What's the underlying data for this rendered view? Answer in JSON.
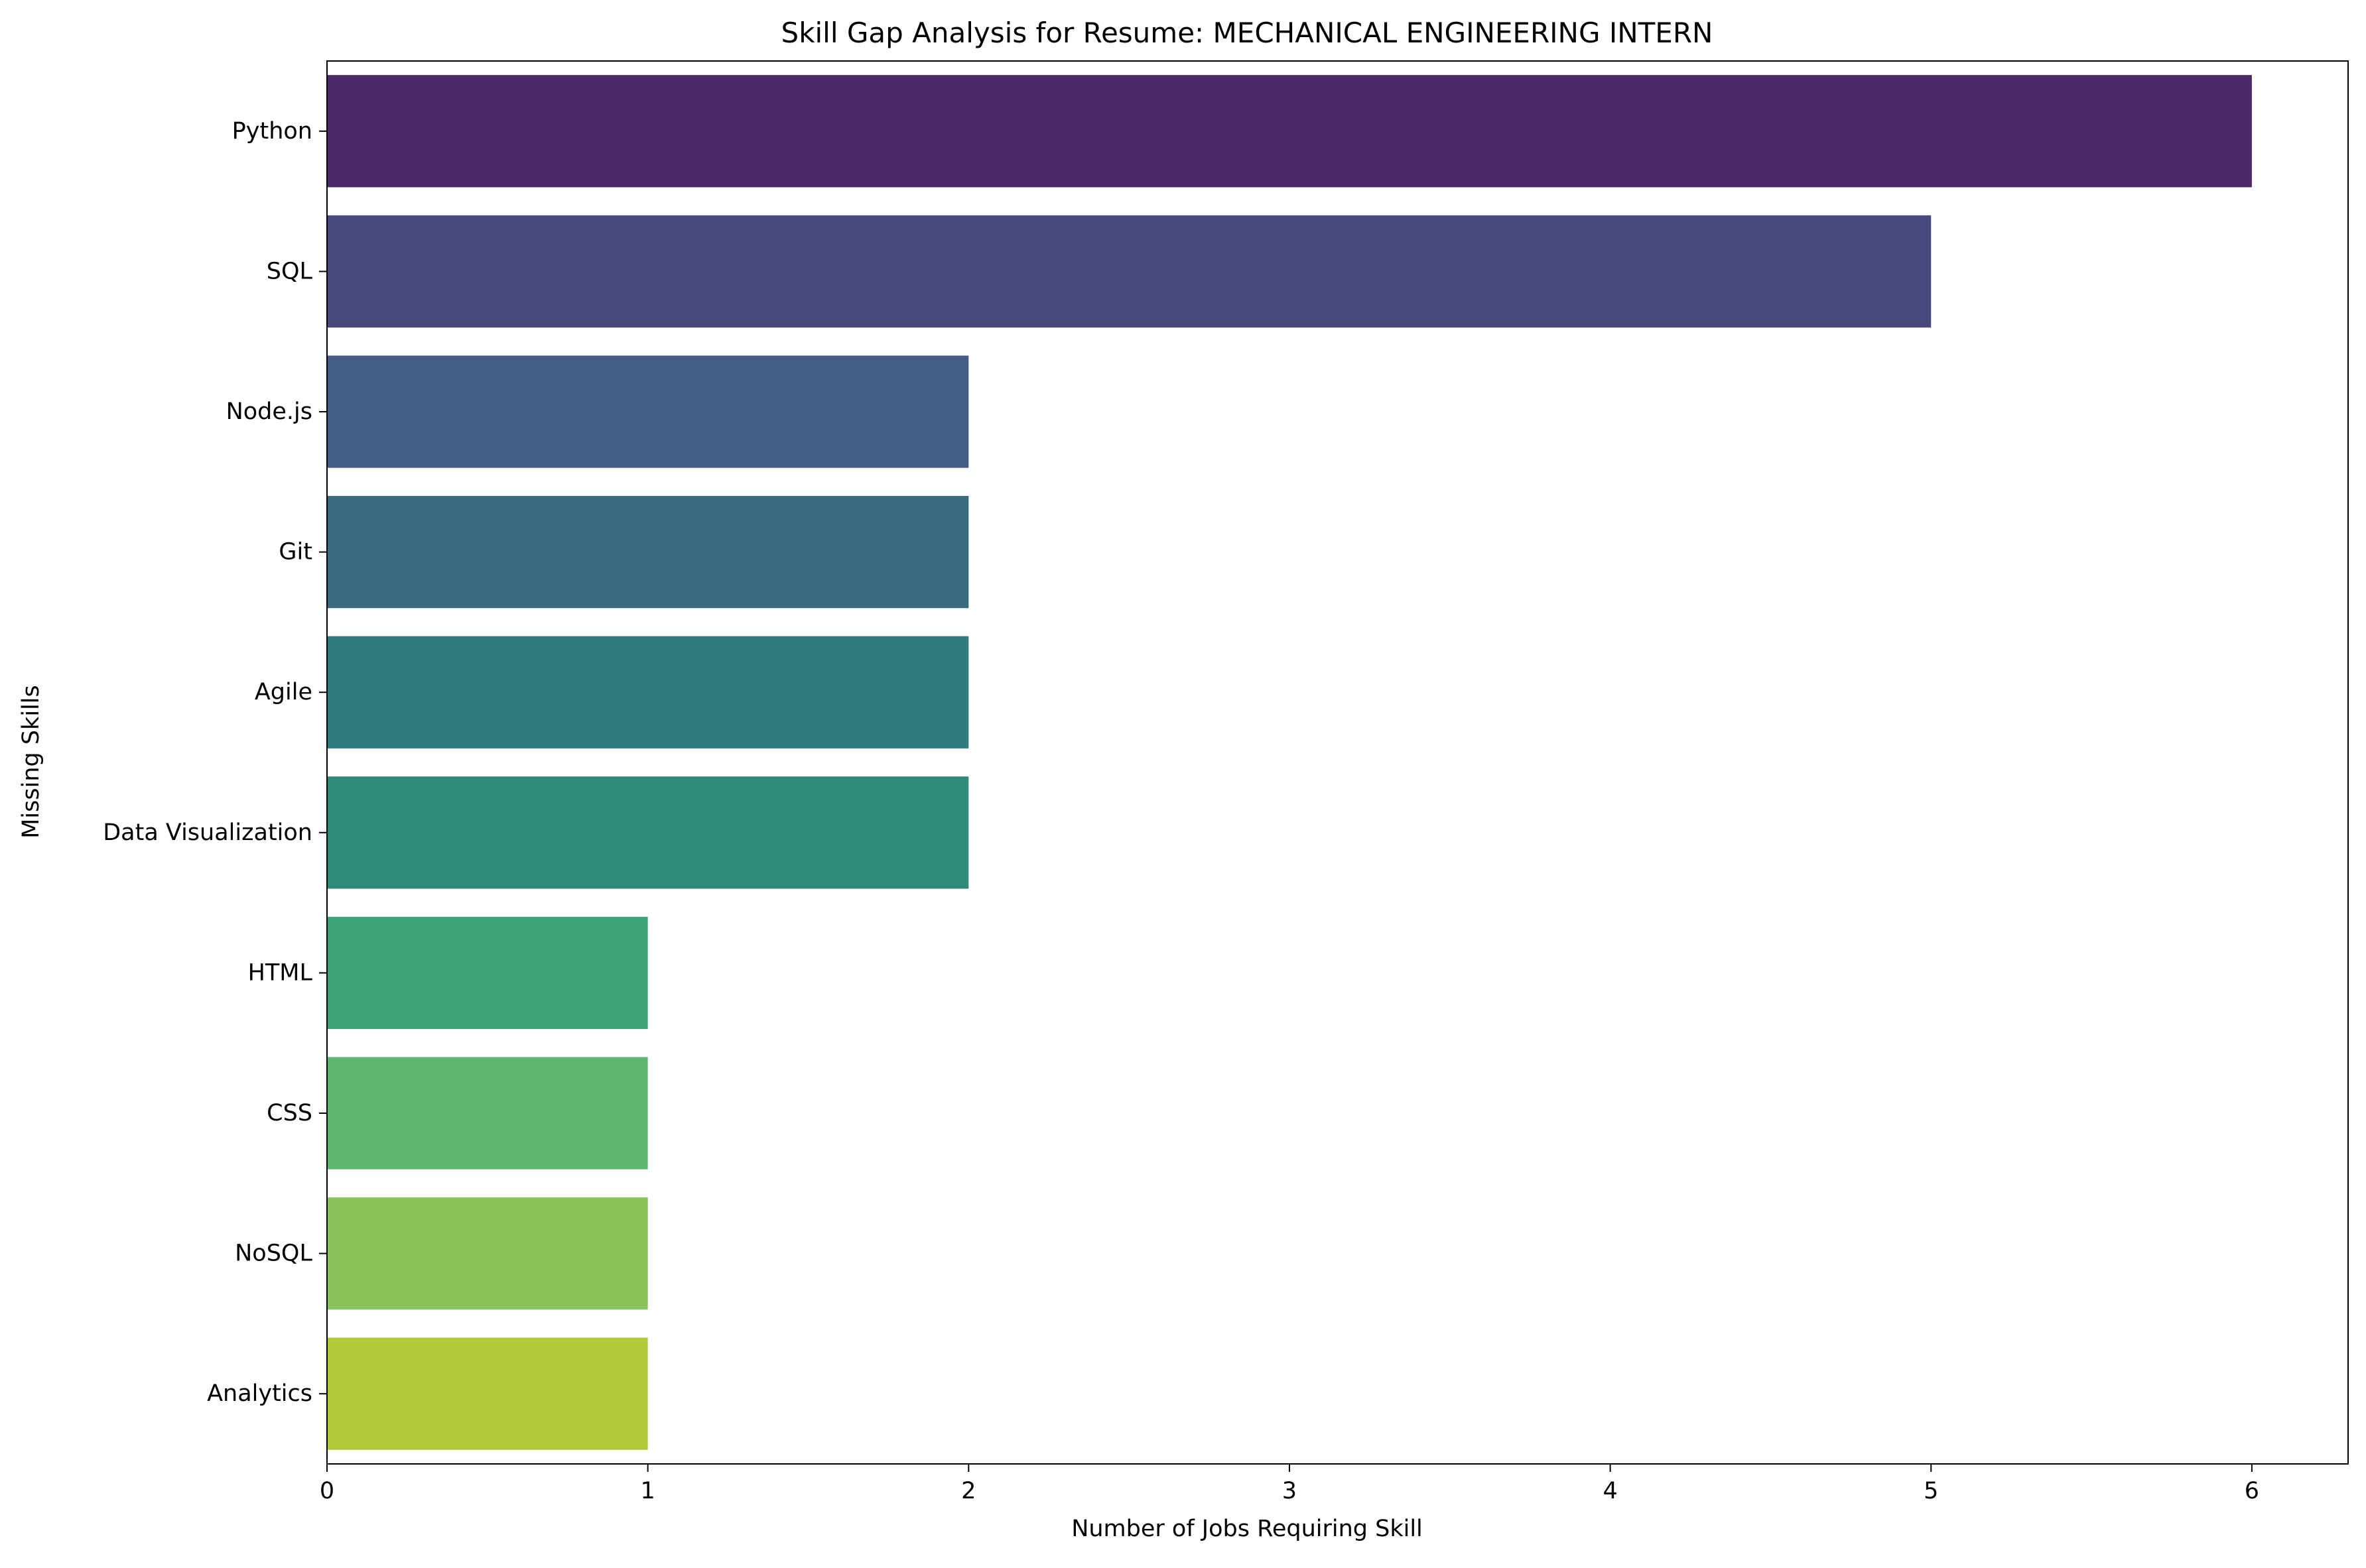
{
  "chart_data": {
    "type": "bar",
    "orientation": "horizontal",
    "title": "Skill Gap Analysis for Resume: MECHANICAL ENGINEERING INTERN",
    "xlabel": "Number of Jobs Requiring Skill",
    "ylabel": "Missing Skills",
    "categories": [
      "Python",
      "SQL",
      "Node.js",
      "Git",
      "Agile",
      "Data Visualization",
      "HTML",
      "CSS",
      "NoSQL",
      "Analytics"
    ],
    "values": [
      6,
      5,
      2,
      2,
      2,
      2,
      1,
      1,
      1,
      1
    ],
    "colors": [
      "#4a2a67",
      "#4a497b",
      "#435c83",
      "#3a6b80",
      "#317a7e",
      "#2f8a7b",
      "#3ca277",
      "#60b56f",
      "#8bc45c",
      "#b2c93a"
    ],
    "xlim": [
      0,
      6.3
    ],
    "xticks": [
      0,
      1,
      2,
      3,
      4,
      5,
      6
    ],
    "grid": false,
    "legend": "none"
  }
}
